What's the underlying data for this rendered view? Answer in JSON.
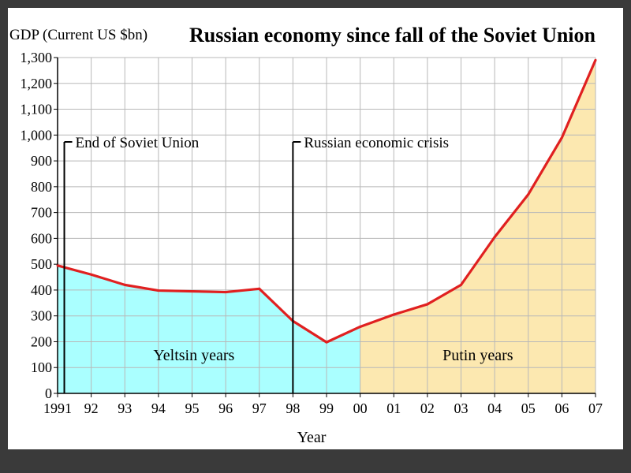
{
  "chart_data": {
    "type": "area",
    "title": "Russian economy since fall of the Soviet Union",
    "ylabel": "GDP (Current US $bn)",
    "xlabel": "Year",
    "ylim": [
      0,
      1300
    ],
    "yticks": [
      0,
      100,
      200,
      300,
      400,
      500,
      600,
      700,
      800,
      900,
      1000,
      1100,
      1200,
      1300
    ],
    "ytick_labels": [
      "0",
      "100",
      "200",
      "300",
      "400",
      "500",
      "600",
      "700",
      "800",
      "900",
      "1,000",
      "1,100",
      "1,200",
      "1,300"
    ],
    "x": [
      1991,
      1992,
      1993,
      1994,
      1995,
      1996,
      1997,
      1998,
      1999,
      2000,
      2001,
      2002,
      2003,
      2004,
      2005,
      2006,
      2007
    ],
    "xtick_labels": [
      "1991",
      "92",
      "93",
      "94",
      "95",
      "96",
      "97",
      "98",
      "99",
      "00",
      "01",
      "02",
      "03",
      "04",
      "05",
      "06",
      "07"
    ],
    "xlim": [
      1991,
      2007
    ],
    "grid": true,
    "series": [
      {
        "values": [
          495,
          460,
          420,
          398,
          395,
          392,
          405,
          280,
          198,
          258,
          305,
          345,
          420,
          605,
          770,
          990,
          1290
        ],
        "color": "#e02020"
      }
    ],
    "regions": [
      {
        "label": "Yeltsin years",
        "from": 1991,
        "to": 2000,
        "color": "#aaffff"
      },
      {
        "label": "Putin years",
        "from": 2000,
        "to": 2007,
        "color": "#fce8b0"
      }
    ],
    "annotations": [
      {
        "label": "End of Soviet Union",
        "x": 1991.2
      },
      {
        "label": "Russian economic crisis",
        "x": 1998
      }
    ]
  }
}
